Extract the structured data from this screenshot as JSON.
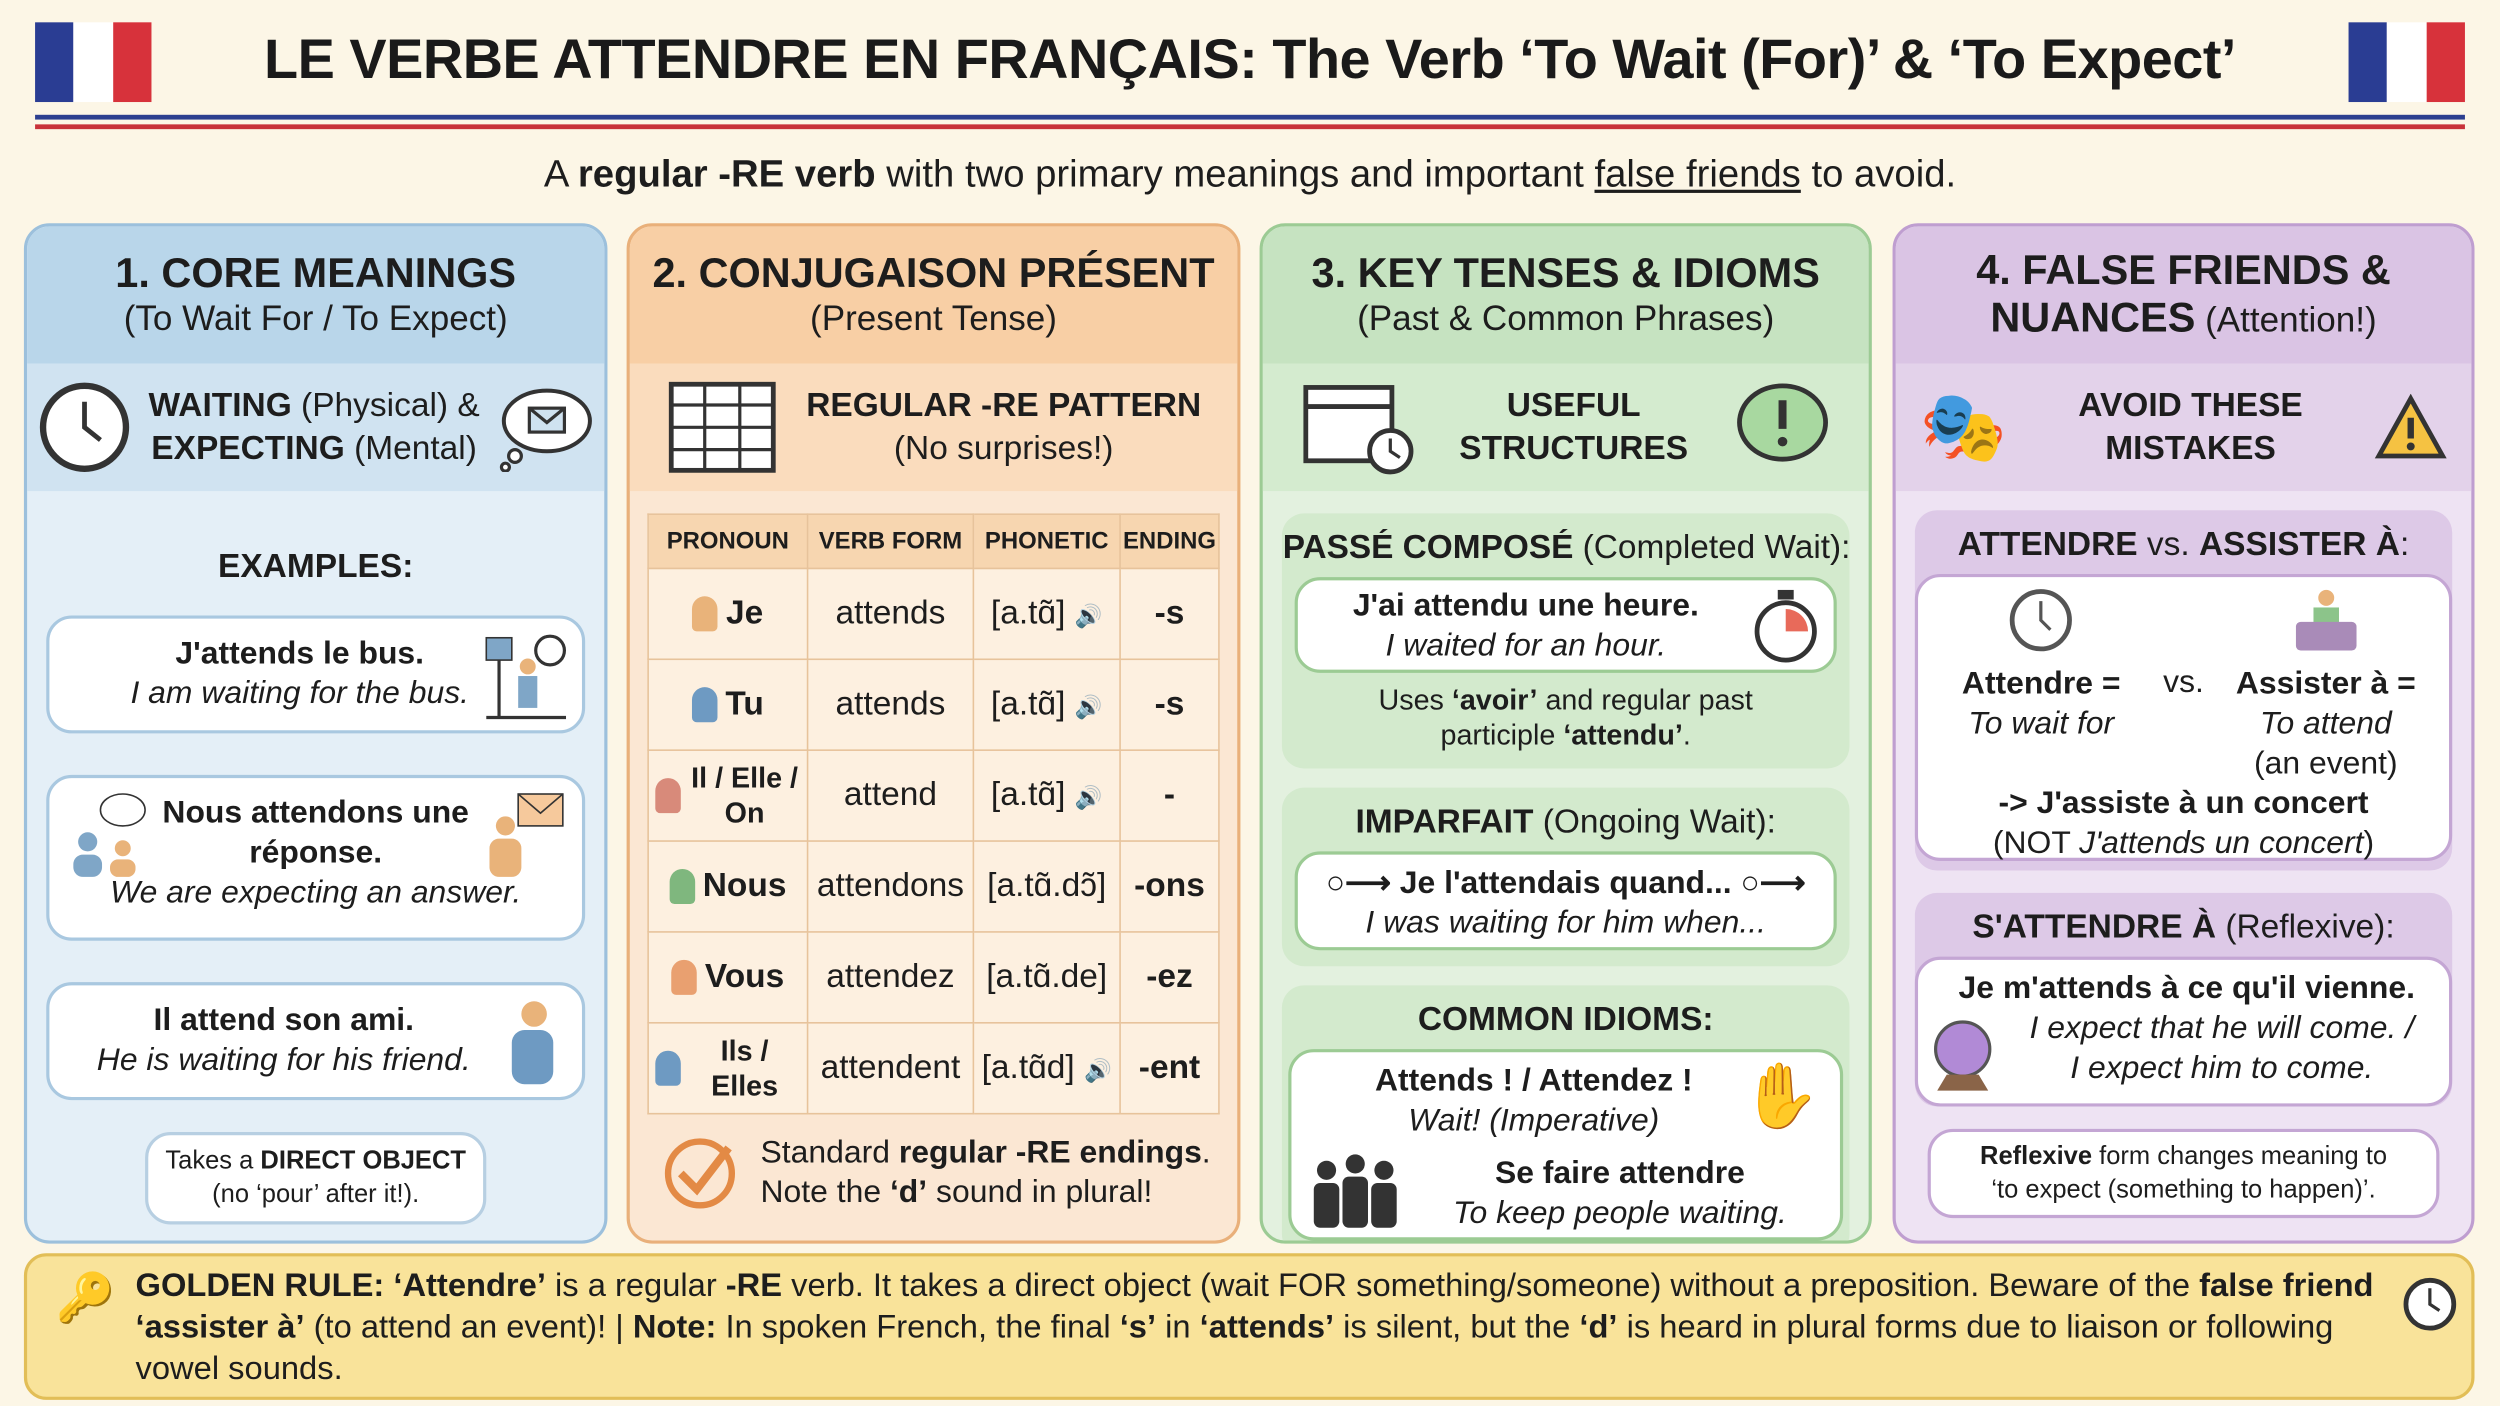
{
  "header": {
    "title": "LE VERBE ATTENDRE EN FRANÇAIS: The Verb ‘To Wait (For)’ & ‘To Expect’",
    "subtitle": [
      {
        "t": "A "
      },
      {
        "t": "regular -RE verb",
        "b": 1
      },
      {
        "t": " with two primary meanings and important "
      },
      {
        "t": "false friends",
        "u": 1
      },
      {
        "t": " to avoid."
      }
    ],
    "flag_colors": [
      "#2a3d93",
      "#ffffff",
      "#d7323b"
    ]
  },
  "colors": {
    "blue": "#b9d6ea",
    "orange": "#f8cfa5",
    "green": "#c6e3c1",
    "purple": "#dac4e4",
    "gold": "#f9e39a"
  },
  "col1": {
    "title": "1. CORE MEANINGS",
    "subtitle": "(To Wait For / To Expect)",
    "band": [
      {
        "t": "WAITING",
        "b": 1
      },
      {
        "t": " (Physical) &"
      },
      {
        "br": 1
      },
      {
        "t": "EXPECTING",
        "b": 1
      },
      {
        "t": " (Mental)"
      }
    ],
    "examples_label": "EXAMPLES:",
    "examples": [
      {
        "fr": "J'attends le bus.",
        "en": "I am waiting for the bus.",
        "icon": "bus-stop-icon"
      },
      {
        "fr": "Nous attendons une réponse.",
        "en": "We are expecting an answer.",
        "icon": "message-icon"
      },
      {
        "fr": "Il attend son ami.",
        "en": "He is waiting for his friend.",
        "icon": "person-watch-icon"
      }
    ],
    "note": [
      {
        "t": "Takes a "
      },
      {
        "t": "DIRECT OBJECT",
        "b": 1
      },
      {
        "br": 1
      },
      {
        "t": "(no ‘pour’ after it!)."
      }
    ]
  },
  "col2": {
    "title": "2. CONJUGAISON PRÉSENT",
    "subtitle": "(Present Tense)",
    "band_title": "REGULAR -RE PATTERN",
    "band_sub": "(No surprises!)",
    "headers": [
      "PRONOUN",
      "VERB FORM",
      "PHONETIC",
      "ENDING"
    ],
    "rows": [
      {
        "p": "Je",
        "v": "attends",
        "ph": "[a.tɑ̃]",
        "snd": true,
        "e": "-s"
      },
      {
        "p": "Tu",
        "v": "attends",
        "ph": "[a.tɑ̃]",
        "snd": true,
        "e": "-s"
      },
      {
        "p": "Il / Elle / On",
        "v": "attend",
        "ph": "[a.tɑ̃]",
        "snd": true,
        "e": "-"
      },
      {
        "p": "Nous",
        "v": "attendons",
        "ph": "[a.tɑ̃.dɔ̃]",
        "snd": false,
        "e": "-ons"
      },
      {
        "p": "Vous",
        "v": "attendez",
        "ph": "[a.tɑ̃.de]",
        "snd": false,
        "e": "-ez"
      },
      {
        "p": "Ils / Elles",
        "v": "attendent",
        "ph": "[a.tɑ̃d]",
        "snd": true,
        "e": "-ent"
      }
    ],
    "footer": [
      {
        "t": "Standard "
      },
      {
        "t": "regular -RE endings",
        "b": 1
      },
      {
        "t": "."
      },
      {
        "br": 1
      },
      {
        "t": "Note the "
      },
      {
        "t": "‘d’",
        "b": 1
      },
      {
        "t": " sound in plural!"
      }
    ]
  },
  "col3": {
    "title": "3. KEY TENSES & IDIOMS",
    "subtitle": "(Past & Common Phrases)",
    "band": "USEFUL STRUCTURES",
    "pc_head": [
      {
        "t": "PASSÉ COMPOSÉ",
        "b": 1
      },
      {
        "t": " (Completed Wait):"
      }
    ],
    "pc_fr": "J'ai attendu une heure.",
    "pc_en": "I waited for an hour.",
    "pc_note": [
      {
        "t": "Uses "
      },
      {
        "t": "‘avoir’",
        "b": 1
      },
      {
        "t": " and regular past"
      },
      {
        "br": 1
      },
      {
        "t": "participle "
      },
      {
        "t": "‘attendu’",
        "b": 1
      },
      {
        "t": "."
      }
    ],
    "imp_head": [
      {
        "t": "IMPARFAIT",
        "b": 1
      },
      {
        "t": " (Ongoing Wait):"
      }
    ],
    "imp_fr": "Je l'attendais quand...",
    "imp_en": "I was waiting for him when...",
    "idioms_head": "COMMON IDIOMS:",
    "idiom1_fr": "Attends ! / Attendez !",
    "idiom1_en": "Wait! (Imperative)",
    "idiom2_fr": "Se faire attendre",
    "idiom2_en": "To keep people waiting."
  },
  "col4": {
    "title": "4. FALSE FRIENDS &",
    "title2": "NUANCES",
    "title_suffix": " (Attention!)",
    "band": "AVOID THESE MISTAKES",
    "vs_head": [
      {
        "t": "ATTENDRE",
        "b": 1
      },
      {
        "t": " vs. "
      },
      {
        "t": "ASSISTER À",
        "b": 1
      },
      {
        "t": ":"
      }
    ],
    "left_term": "Attendre =",
    "left_def": "To wait for",
    "vs": "vs.",
    "right_term": "Assister à =",
    "right_def": "To attend",
    "right_def2": "(an event)",
    "example": "-> J'assiste à un concert",
    "not": [
      {
        "t": "(NOT "
      },
      {
        "t": "J'attends un concert",
        "i": 1
      },
      {
        "t": ")"
      }
    ],
    "refl_head": [
      {
        "t": "S'ATTENDRE À",
        "b": 1
      },
      {
        "t": " (Reflexive):"
      }
    ],
    "refl_fr": "Je m'attends à ce qu'il vienne.",
    "refl_en1": "I expect that he will come. /",
    "refl_en2": "I expect him to come.",
    "refl_note": [
      {
        "t": "Reflexive",
        "b": 1
      },
      {
        "t": " form changes meaning to"
      },
      {
        "br": 1
      },
      {
        "t": "‘to expect (something to happen)’."
      }
    ]
  },
  "golden": [
    {
      "t": "GOLDEN RULE: ‘Attendre’",
      "b": 1
    },
    {
      "t": " is a regular "
    },
    {
      "t": "-RE",
      "b": 1
    },
    {
      "t": " verb. It takes a direct object (wait FOR something/someone) without a preposition. Beware of the "
    },
    {
      "t": "false friend",
      "b": 1
    },
    {
      "t": " "
    },
    {
      "t": "‘assister à’",
      "b": 1
    },
    {
      "t": " (to attend an event)! | "
    },
    {
      "t": "Note:",
      "b": 1
    },
    {
      "t": " In spoken French, the final "
    },
    {
      "t": "‘s’",
      "b": 1
    },
    {
      "t": " in "
    },
    {
      "t": "‘attends’",
      "b": 1
    },
    {
      "t": " is silent, but the "
    },
    {
      "t": "‘d’",
      "b": 1
    },
    {
      "t": " is heard in plural forms due to liaison or following vowel sounds."
    }
  ]
}
